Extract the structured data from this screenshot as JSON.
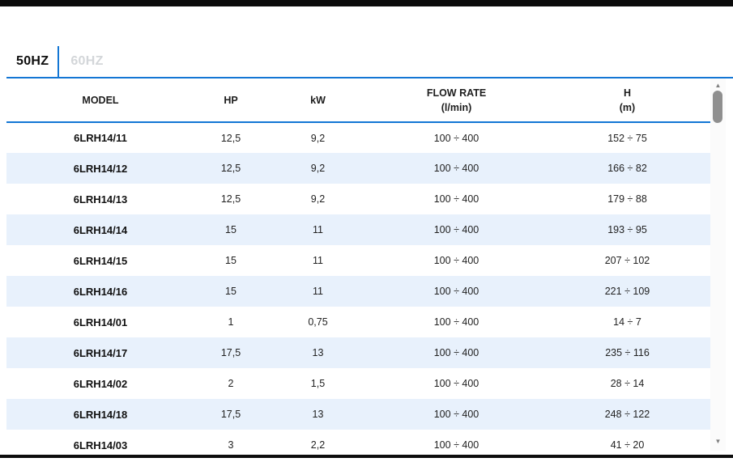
{
  "top_tabs": {
    "items": [
      {
        "id": "50hz",
        "label": "50HZ",
        "active": true
      },
      {
        "id": "60hz",
        "label": "60HZ",
        "active": false
      }
    ]
  },
  "table": {
    "columns": [
      {
        "key": "model",
        "label": "MODEL",
        "sub": ""
      },
      {
        "key": "hp",
        "label": "HP",
        "sub": ""
      },
      {
        "key": "kw",
        "label": "kW",
        "sub": ""
      },
      {
        "key": "flow",
        "label": "FLOW RATE",
        "sub": "(l/min)"
      },
      {
        "key": "h",
        "label": "H",
        "sub": "(m)"
      }
    ],
    "rows": [
      {
        "model": "6LRH14/11",
        "hp": "12,5",
        "kw": "9,2",
        "flow": "100 ÷ 400",
        "h": "152 ÷ 75"
      },
      {
        "model": "6LRH14/12",
        "hp": "12,5",
        "kw": "9,2",
        "flow": "100 ÷ 400",
        "h": "166 ÷ 82"
      },
      {
        "model": "6LRH14/13",
        "hp": "12,5",
        "kw": "9,2",
        "flow": "100 ÷ 400",
        "h": "179 ÷ 88"
      },
      {
        "model": "6LRH14/14",
        "hp": "15",
        "kw": "11",
        "flow": "100 ÷ 400",
        "h": "193 ÷ 95"
      },
      {
        "model": "6LRH14/15",
        "hp": "15",
        "kw": "11",
        "flow": "100 ÷ 400",
        "h": "207 ÷ 102"
      },
      {
        "model": "6LRH14/16",
        "hp": "15",
        "kw": "11",
        "flow": "100 ÷ 400",
        "h": "221 ÷ 109"
      },
      {
        "model": "6LRH14/01",
        "hp": "1",
        "kw": "0,75",
        "flow": "100 ÷ 400",
        "h": "14 ÷ 7"
      },
      {
        "model": "6LRH14/17",
        "hp": "17,5",
        "kw": "13",
        "flow": "100 ÷ 400",
        "h": "235 ÷ 116"
      },
      {
        "model": "6LRH14/02",
        "hp": "2",
        "kw": "1,5",
        "flow": "100 ÷ 400",
        "h": "28 ÷ 14"
      },
      {
        "model": "6LRH14/18",
        "hp": "17,5",
        "kw": "13",
        "flow": "100 ÷ 400",
        "h": "248 ÷ 122"
      },
      {
        "model": "6LRH14/03",
        "hp": "3",
        "kw": "2,2",
        "flow": "100 ÷ 400",
        "h": "41 ÷ 20"
      }
    ]
  },
  "scrollbar": {
    "up_icon": "▲",
    "down_icon": "▼"
  },
  "colors": {
    "accent_blue": "#1376d4",
    "row_alt_blue": "#e8f1fc",
    "inactive_tab_gray": "#d3d6d9",
    "border_black": "#0b0b0b"
  }
}
